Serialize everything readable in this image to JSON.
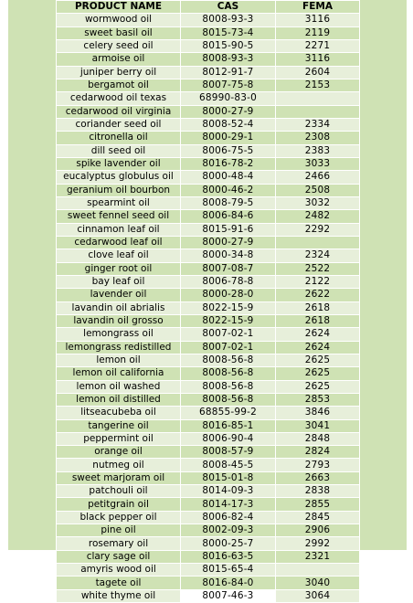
{
  "table": {
    "headers": [
      "PRODUCT NAME",
      "CAS",
      "FEMA"
    ],
    "rows": [
      [
        "wormwood oil",
        "8008-93-3",
        "3116"
      ],
      [
        "sweet basil oil",
        "8015-73-4",
        "2119"
      ],
      [
        "celery seed oil",
        "8015-90-5",
        "2271"
      ],
      [
        "armoise oil",
        "8008-93-3",
        "3116"
      ],
      [
        "juniper berry oil",
        "8012-91-7",
        "2604"
      ],
      [
        "bergamot oil",
        "8007-75-8",
        "2153"
      ],
      [
        "cedarwood oil texas",
        "68990-83-0",
        ""
      ],
      [
        "cedarwood oil virginia",
        "8000-27-9",
        ""
      ],
      [
        "coriander seed oil",
        "8008-52-4",
        "2334"
      ],
      [
        "citronella oil",
        "8000-29-1",
        "2308"
      ],
      [
        "dill seed oil",
        "8006-75-5",
        "2383"
      ],
      [
        "spike lavender oil",
        "8016-78-2",
        "3033"
      ],
      [
        "eucalyptus globulus oil",
        "8000-48-4",
        "2466"
      ],
      [
        "geranium oil bourbon",
        "8000-46-2",
        "2508"
      ],
      [
        "spearmint oil",
        "8008-79-5",
        "3032"
      ],
      [
        "sweet fennel seed oil",
        "8006-84-6",
        "2482"
      ],
      [
        "cinnamon leaf oil",
        "8015-91-6",
        "2292"
      ],
      [
        "cedarwood leaf oil",
        "8000-27-9",
        ""
      ],
      [
        "clove leaf oil",
        "8000-34-8",
        "2324"
      ],
      [
        "ginger root oil",
        "8007-08-7",
        "2522"
      ],
      [
        "bay leaf oil",
        "8006-78-8",
        "2122"
      ],
      [
        "lavender oil",
        "8000-28-0",
        "2622"
      ],
      [
        "lavandin oil abrialis",
        "8022-15-9",
        "2618"
      ],
      [
        "lavandin oil grosso",
        "8022-15-9",
        "2618"
      ],
      [
        "lemongrass oil",
        "8007-02-1",
        "2624"
      ],
      [
        "lemongrass redistilled",
        "8007-02-1",
        "2624"
      ],
      [
        "lemon oil",
        "8008-56-8",
        "2625"
      ],
      [
        "lemon oil california",
        "8008-56-8",
        "2625"
      ],
      [
        "lemon oil washed",
        "8008-56-8",
        "2625"
      ],
      [
        "lemon oil distilled",
        "8008-56-8",
        "2853"
      ],
      [
        "litseacubeba oil",
        "68855-99-2",
        "3846"
      ],
      [
        "tangerine oil",
        "8016-85-1",
        "3041"
      ],
      [
        "peppermint oil",
        "8006-90-4",
        "2848"
      ],
      [
        "orange oil",
        "8008-57-9",
        "2824"
      ],
      [
        "nutmeg oil",
        "8008-45-5",
        "2793"
      ],
      [
        "sweet marjoram oil",
        "8015-01-8",
        "2663"
      ],
      [
        "patchouli oil",
        "8014-09-3",
        "2838"
      ],
      [
        "petitgrain oil",
        "8014-17-3",
        "2855"
      ],
      [
        "black pepper oil",
        "8006-82-4",
        "2845"
      ],
      [
        "pine oil",
        "8002-09-3",
        "2906"
      ],
      [
        "rosemary oil",
        "8000-25-7",
        "2992"
      ],
      [
        "clary sage oil",
        "8016-63-5",
        "2321"
      ],
      [
        "amyris wood oil",
        "8015-65-4",
        ""
      ],
      [
        "tagete oil",
        "8016-84-0",
        "3040"
      ],
      [
        "white thyme oil",
        "8007-46-3",
        "3064"
      ]
    ]
  }
}
